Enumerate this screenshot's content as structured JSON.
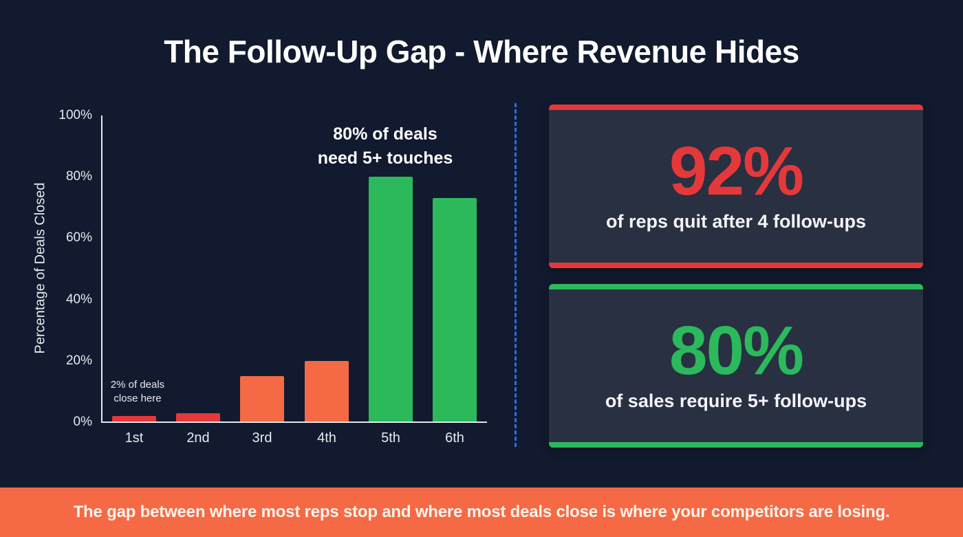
{
  "title": "The Follow-Up Gap - Where Revenue Hides",
  "chart": {
    "ylabel": "Percentage of Deals Closed",
    "yticks": [
      "100%",
      "80%",
      "60%",
      "40%",
      "20%",
      "0%"
    ],
    "xticks": [
      "1st",
      "2nd",
      "3rd",
      "4th",
      "5th",
      "6th"
    ],
    "annotation_small": "2% of deals close here",
    "annotation_small_lines": [
      "2% of deals",
      "close here"
    ],
    "annotation_big_lines": [
      "80% of deals",
      "need 5+ touches"
    ]
  },
  "cards": [
    {
      "value": "92%",
      "caption": "of reps quit after 4 follow-ups",
      "color": "#e5383b"
    },
    {
      "value": "80%",
      "caption": "of sales require 5+ follow-ups",
      "color": "#2bb95c"
    }
  ],
  "footer": {
    "text": "The gap between where most reps stop and where most deals close is where your competitors are losing."
  },
  "colors": {
    "background": "#111a2e",
    "red": "#e5383b",
    "orange": "#f56a44",
    "green": "#2bb95c",
    "divider": "#2e6de0",
    "card": "#283041"
  },
  "chart_data": {
    "type": "bar",
    "title": "The Follow-Up Gap - Where Revenue Hides",
    "xlabel": "",
    "ylabel": "Percentage of Deals Closed",
    "categories": [
      "1st",
      "2nd",
      "3rd",
      "4th",
      "5th",
      "6th"
    ],
    "values": [
      2,
      3,
      15,
      20,
      80,
      73
    ],
    "bar_colors": [
      "#e5383b",
      "#e5383b",
      "#f56a44",
      "#f56a44",
      "#2bb95c",
      "#2bb95c"
    ],
    "ylim": [
      0,
      100
    ],
    "yticks": [
      0,
      20,
      40,
      60,
      80,
      100
    ],
    "ytick_format": "percent",
    "grid": false,
    "legend": null,
    "annotations": [
      {
        "text": "2% of deals close here",
        "near": "1st"
      },
      {
        "text": "80% of deals need 5+ touches",
        "near": "5th"
      }
    ]
  }
}
